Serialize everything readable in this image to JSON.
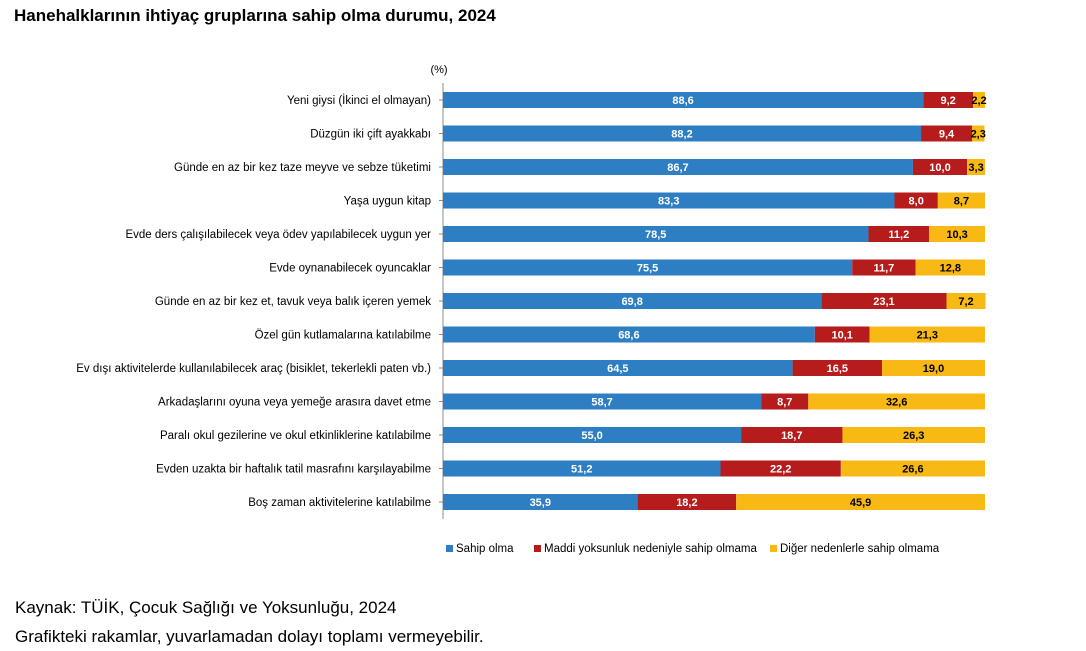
{
  "title": "Hanehalklarının ihtiyaç gruplarına sahip olma durumu, 2024",
  "chart_data": {
    "type": "bar",
    "orientation": "horizontal",
    "stacked": true,
    "unit_label": "(%)",
    "categories": [
      "Yeni giysi (İkinci el olmayan)",
      "Düzgün iki çift ayakkabı",
      "Günde en az bir kez taze meyve ve sebze tüketimi",
      "Yaşa uygun kitap",
      "Evde ders çalışılabilecek veya ödev yapılabilecek uygun yer",
      "Evde oynanabilecek oyuncaklar",
      "Günde en az bir kez et, tavuk veya balık içeren yemek",
      "Özel gün kutlamalarına katılabilme",
      "Ev dışı aktivitelerde kullanılabilecek araç (bisiklet, tekerlekli paten vb.)",
      "Arkadaşlarını oyuna veya yemeğe arasıra davet etme",
      "Paralı okul gezilerine ve okul etkinliklerine katılabilme",
      "Evden uzakta bir haftalık tatil masrafını karşılayabilme",
      "Boş zaman aktivitelerine katılabilme"
    ],
    "series": [
      {
        "name": "Sahip olma",
        "color": "#2e7ec4",
        "values": [
          88.6,
          88.2,
          86.7,
          83.3,
          78.5,
          75.5,
          69.8,
          68.6,
          64.5,
          58.7,
          55.0,
          51.2,
          35.9
        ],
        "labels": [
          "88,6",
          "88,2",
          "86,7",
          "83,3",
          "78,5",
          "75,5",
          "69,8",
          "68,6",
          "64,5",
          "58,7",
          "55,0",
          "51,2",
          "35,9"
        ]
      },
      {
        "name": "Maddi yoksunluk nedeniyle sahip olmama",
        "color": "#b71c1c",
        "values": [
          9.2,
          9.4,
          10.0,
          8.0,
          11.2,
          11.7,
          23.1,
          10.1,
          16.5,
          8.7,
          18.7,
          22.2,
          18.2
        ],
        "labels": [
          "9,2",
          "9,4",
          "10,0",
          "8,0",
          "11,2",
          "11,7",
          "23,1",
          "10,1",
          "16,5",
          "8,7",
          "18,7",
          "22,2",
          "18,2"
        ]
      },
      {
        "name": "Diğer nedenlerle sahip olmama",
        "color": "#f9b914",
        "values": [
          2.2,
          2.3,
          3.3,
          8.7,
          10.3,
          12.8,
          7.2,
          21.3,
          19.0,
          32.6,
          26.3,
          26.6,
          45.9
        ],
        "labels": [
          "2,2",
          "2,3",
          "3,3",
          "8,7",
          "10,3",
          "12,8",
          "7,2",
          "21,3",
          "19,0",
          "32,6",
          "26,3",
          "26,6",
          "45,9"
        ]
      }
    ],
    "xlim": [
      0,
      100
    ],
    "legend_position": "bottom-right",
    "grid": false
  },
  "footer": {
    "source": "Kaynak: TÜİK, Çocuk Sağlığı ve Yoksunluğu, 2024",
    "note": "Grafikteki rakamlar, yuvarlamadan dolayı toplamı vermeyebilir."
  }
}
